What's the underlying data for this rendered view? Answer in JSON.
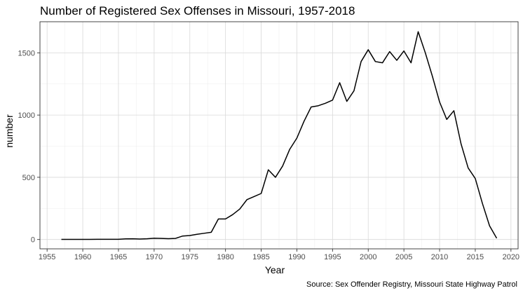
{
  "chart_data": {
    "type": "line",
    "title": "Number of Registered Sex Offenses in Missouri, 1957-2018",
    "xlabel": "Year",
    "ylabel": "number",
    "caption": "Source: Sex Offender Registry, Missouri State Highway Patrol",
    "xlim": [
      1954,
      2021
    ],
    "ylim": [
      -75,
      1750
    ],
    "x_ticks": [
      1955,
      1960,
      1965,
      1970,
      1975,
      1980,
      1985,
      1990,
      1995,
      2000,
      2005,
      2010,
      2015,
      2020
    ],
    "y_ticks": [
      0,
      500,
      1000,
      1500
    ],
    "grid": true,
    "legend": "none",
    "line_color": "#000000",
    "series": [
      {
        "x": [
          1957,
          1958,
          1959,
          1960,
          1961,
          1962,
          1963,
          1964,
          1965,
          1966,
          1967,
          1968,
          1969,
          1970,
          1971,
          1972,
          1973,
          1974,
          1975,
          1976,
          1977,
          1978,
          1979,
          1980,
          1981,
          1982,
          1983,
          1984,
          1985,
          1986,
          1987,
          1988,
          1989,
          1990,
          1991,
          1992,
          1993,
          1994,
          1995,
          1996,
          1997,
          1998,
          1999,
          2000,
          2001,
          2002,
          2003,
          2004,
          2005,
          2006,
          2007,
          2008,
          2009,
          2010,
          2011,
          2012,
          2013,
          2014,
          2015,
          2016,
          2017,
          2018
        ],
        "values": [
          1,
          1,
          1,
          1,
          1,
          2,
          2,
          2,
          2,
          5,
          6,
          4,
          6,
          10,
          9,
          7,
          9,
          28,
          32,
          42,
          50,
          58,
          165,
          165,
          200,
          245,
          320,
          345,
          370,
          560,
          500,
          590,
          725,
          815,
          950,
          1065,
          1075,
          1095,
          1120,
          1260,
          1110,
          1195,
          1430,
          1525,
          1430,
          1420,
          1510,
          1440,
          1515,
          1420,
          1670,
          1500,
          1310,
          1105,
          965,
          1035,
          770,
          575,
          490,
          290,
          110,
          10
        ]
      }
    ]
  }
}
